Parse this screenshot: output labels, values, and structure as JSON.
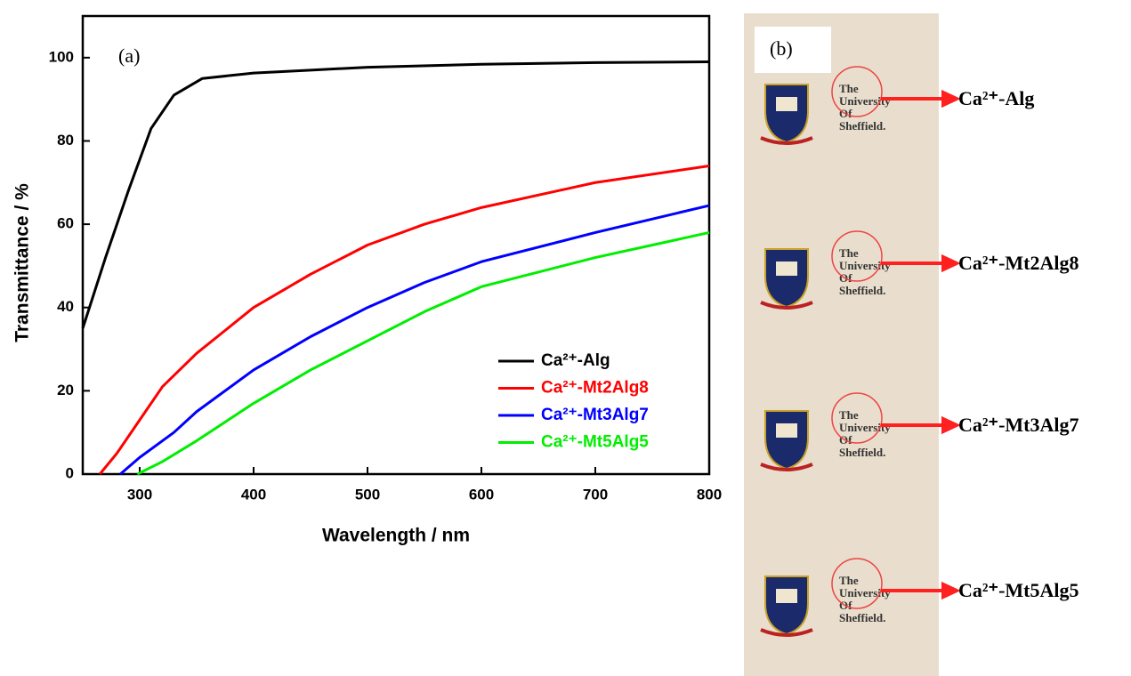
{
  "chart_data": {
    "type": "line",
    "panel_label": "(a)",
    "xlabel": "Wavelength / nm",
    "ylabel": "Transmittance / %",
    "xlim": [
      250,
      800
    ],
    "ylim": [
      0,
      110
    ],
    "xticks": [
      300,
      400,
      500,
      600,
      700,
      800
    ],
    "yticks": [
      0,
      20,
      40,
      60,
      80,
      100
    ],
    "series": [
      {
        "name": "Ca²⁺-Alg",
        "color": "#000000",
        "x": [
          250,
          270,
          290,
          310,
          330,
          355,
          400,
          450,
          500,
          600,
          700,
          800
        ],
        "values": [
          35,
          52,
          68,
          83,
          91,
          95,
          96.3,
          97,
          97.7,
          98.4,
          98.8,
          99
        ]
      },
      {
        "name": "Ca²⁺-Mt2Alg8",
        "color": "#ff0000",
        "x": [
          265,
          280,
          300,
          320,
          350,
          400,
          450,
          500,
          550,
          600,
          700,
          800
        ],
        "values": [
          0,
          5,
          13,
          21,
          29,
          40,
          48,
          55,
          60,
          64,
          70,
          74
        ]
      },
      {
        "name": "Ca²⁺-Mt3Alg7",
        "color": "#0000ff",
        "x": [
          283,
          300,
          330,
          350,
          400,
          450,
          500,
          550,
          600,
          700,
          800
        ],
        "values": [
          0,
          4,
          10,
          15,
          25,
          33,
          40,
          46,
          51,
          58,
          64.5
        ]
      },
      {
        "name": "Ca²⁺-Mt5Alg5",
        "color": "#00ee00",
        "x": [
          298,
          320,
          350,
          400,
          450,
          500,
          550,
          600,
          700,
          800
        ],
        "values": [
          0,
          3,
          8,
          17,
          25,
          32,
          39,
          45,
          52,
          58
        ]
      }
    ]
  },
  "photo": {
    "panel_label": "(b)",
    "logo_lines": [
      "The",
      "University",
      "Of",
      "Sheffield."
    ],
    "labels": [
      "Ca²⁺-Alg",
      "Ca²⁺-Mt2Alg8",
      "Ca²⁺-Mt3Alg7",
      "Ca²⁺-Mt5Alg5"
    ]
  }
}
